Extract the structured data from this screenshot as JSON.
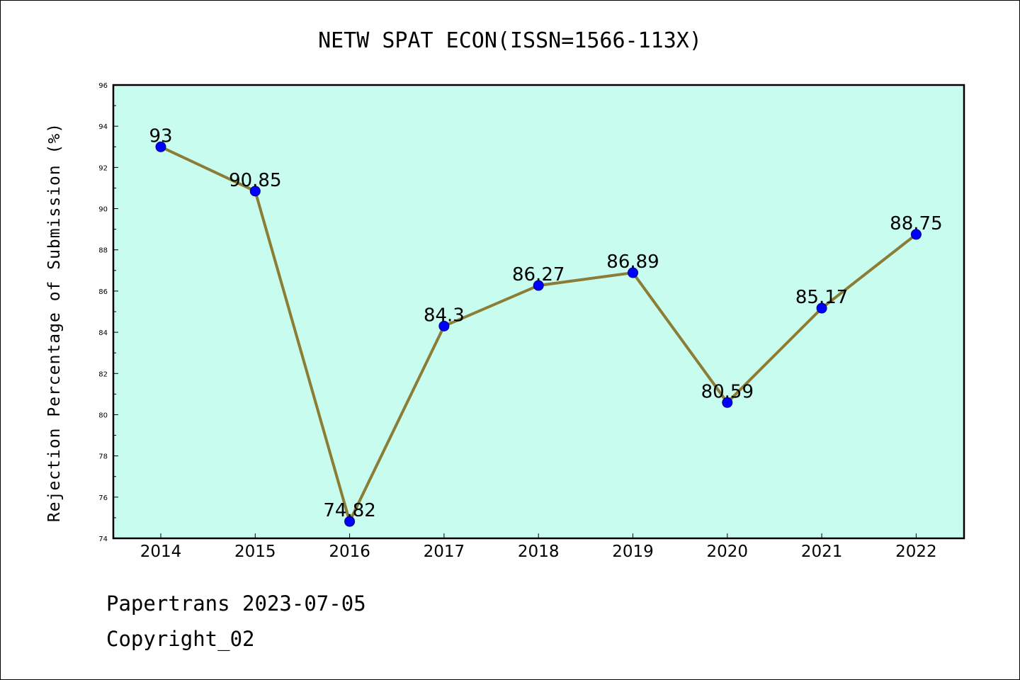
{
  "footer": {
    "line1": "Papertrans 2023-07-05",
    "line2": "Copyright_02"
  },
  "colors": {
    "plot_background": "#c8fcee",
    "line": "#8b7d35",
    "marker": "#0000ff",
    "marker_edge": "#000080"
  },
  "chart_data": {
    "type": "line",
    "title": "NETW SPAT ECON(ISSN=1566-113X)",
    "xlabel": "",
    "ylabel": "Rejection Percentage of Submission (%)",
    "categories": [
      "2014",
      "2015",
      "2016",
      "2017",
      "2018",
      "2019",
      "2020",
      "2021",
      "2022"
    ],
    "values": [
      93,
      90.85,
      74.82,
      84.3,
      86.27,
      86.89,
      80.59,
      85.17,
      88.75
    ],
    "data_labels": [
      "93",
      "90.85",
      "74.82",
      "84.3",
      "86.27",
      "86.89",
      "80.59",
      "85.17",
      "88.75"
    ],
    "ylim": [
      74,
      96
    ],
    "yticks": [
      74,
      76,
      78,
      80,
      82,
      84,
      86,
      88,
      90,
      92,
      94,
      96
    ],
    "grid": false,
    "legend": "none"
  }
}
